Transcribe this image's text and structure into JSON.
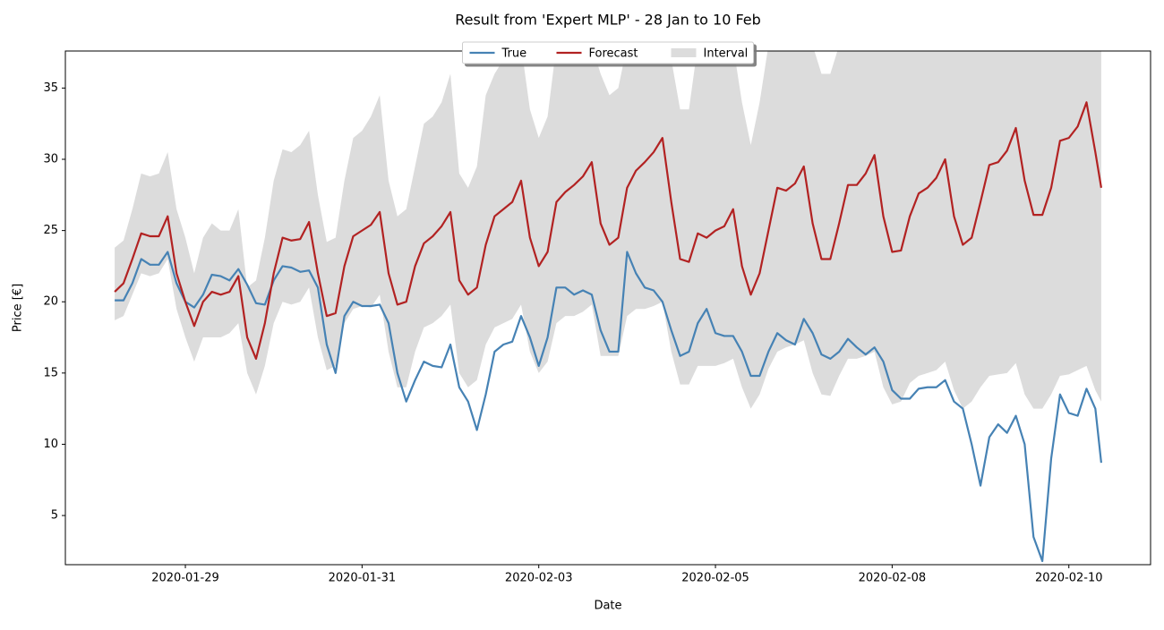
{
  "chart_data": {
    "type": "line",
    "title": "Result from 'Expert MLP' - 28 Jan to 10 Feb",
    "x_label": "Date",
    "y_label": "Price [€]",
    "legend": "upper center",
    "xlim": [
      "2020-01-27T07:15",
      "2020-02-11T15:45"
    ],
    "xticks": [
      {
        "value": "2020-01-29T00:00",
        "label": "2020-01-29"
      },
      {
        "value": "2020-01-31T12:00",
        "label": "2020-01-31"
      },
      {
        "value": "2020-02-03T00:00",
        "label": "2020-02-03"
      },
      {
        "value": "2020-02-05T12:00",
        "label": "2020-02-05"
      },
      {
        "value": "2020-02-08T00:00",
        "label": "2020-02-08"
      },
      {
        "value": "2020-02-10T12:00",
        "label": "2020-02-10"
      }
    ],
    "ylim": [
      1.55,
      37.6
    ],
    "yticks": [
      5,
      10,
      15,
      20,
      25,
      30,
      35
    ],
    "x": [
      "2020-01-28T00:00",
      "2020-01-28T03:00",
      "2020-01-28T06:00",
      "2020-01-28T09:00",
      "2020-01-28T12:00",
      "2020-01-28T15:00",
      "2020-01-28T18:00",
      "2020-01-28T21:00",
      "2020-01-29T00:00",
      "2020-01-29T03:00",
      "2020-01-29T06:00",
      "2020-01-29T09:00",
      "2020-01-29T12:00",
      "2020-01-29T15:00",
      "2020-01-29T18:00",
      "2020-01-29T21:00",
      "2020-01-30T00:00",
      "2020-01-30T03:00",
      "2020-01-30T06:00",
      "2020-01-30T09:00",
      "2020-01-30T12:00",
      "2020-01-30T15:00",
      "2020-01-30T18:00",
      "2020-01-30T21:00",
      "2020-01-31T00:00",
      "2020-01-31T03:00",
      "2020-01-31T06:00",
      "2020-01-31T09:00",
      "2020-01-31T12:00",
      "2020-01-31T15:00",
      "2020-01-31T18:00",
      "2020-01-31T21:00",
      "2020-02-01T00:00",
      "2020-02-01T03:00",
      "2020-02-01T06:00",
      "2020-02-01T09:00",
      "2020-02-01T12:00",
      "2020-02-01T15:00",
      "2020-02-01T18:00",
      "2020-02-01T21:00",
      "2020-02-02T00:00",
      "2020-02-02T03:00",
      "2020-02-02T06:00",
      "2020-02-02T09:00",
      "2020-02-02T12:00",
      "2020-02-02T15:00",
      "2020-02-02T18:00",
      "2020-02-02T21:00",
      "2020-02-03T00:00",
      "2020-02-03T03:00",
      "2020-02-03T06:00",
      "2020-02-03T09:00",
      "2020-02-03T12:00",
      "2020-02-03T15:00",
      "2020-02-03T18:00",
      "2020-02-03T21:00",
      "2020-02-04T00:00",
      "2020-02-04T03:00",
      "2020-02-04T06:00",
      "2020-02-04T09:00",
      "2020-02-04T12:00",
      "2020-02-04T15:00",
      "2020-02-04T18:00",
      "2020-02-04T21:00",
      "2020-02-05T00:00",
      "2020-02-05T03:00",
      "2020-02-05T06:00",
      "2020-02-05T09:00",
      "2020-02-05T12:00",
      "2020-02-05T15:00",
      "2020-02-05T18:00",
      "2020-02-05T21:00",
      "2020-02-06T00:00",
      "2020-02-06T03:00",
      "2020-02-06T06:00",
      "2020-02-06T09:00",
      "2020-02-06T12:00",
      "2020-02-06T15:00",
      "2020-02-06T18:00",
      "2020-02-06T21:00",
      "2020-02-07T00:00",
      "2020-02-07T03:00",
      "2020-02-07T06:00",
      "2020-02-07T09:00",
      "2020-02-07T12:00",
      "2020-02-07T15:00",
      "2020-02-07T18:00",
      "2020-02-07T21:00",
      "2020-02-08T00:00",
      "2020-02-08T03:00",
      "2020-02-08T06:00",
      "2020-02-08T09:00",
      "2020-02-08T12:00",
      "2020-02-08T15:00",
      "2020-02-08T18:00",
      "2020-02-08T21:00",
      "2020-02-09T00:00",
      "2020-02-09T03:00",
      "2020-02-09T06:00",
      "2020-02-09T09:00",
      "2020-02-09T12:00",
      "2020-02-09T15:00",
      "2020-02-09T18:00",
      "2020-02-09T21:00",
      "2020-02-10T00:00",
      "2020-02-10T03:00",
      "2020-02-10T06:00",
      "2020-02-10T09:00",
      "2020-02-10T12:00",
      "2020-02-10T15:00",
      "2020-02-10T18:00",
      "2020-02-10T21:00",
      "2020-02-10T23:00"
    ],
    "interval": {
      "name": "Interval",
      "color": "#dcdcdc",
      "lower": [
        18.7,
        19.0,
        20.5,
        22.0,
        21.8,
        22.0,
        23.0,
        19.5,
        17.5,
        15.8,
        17.5,
        17.5,
        17.5,
        17.8,
        18.5,
        15.0,
        13.5,
        15.5,
        18.5,
        20.0,
        19.8,
        20.0,
        21.0,
        17.5,
        15.2,
        15.5,
        18.5,
        19.5,
        19.7,
        19.6,
        20.5,
        16.5,
        14.0,
        14.0,
        16.5,
        18.2,
        18.5,
        19.0,
        19.8,
        15.0,
        14.0,
        14.5,
        17.0,
        18.2,
        18.5,
        18.8,
        19.8,
        16.5,
        15.0,
        15.8,
        18.5,
        19.0,
        19.0,
        19.3,
        19.8,
        16.2,
        16.2,
        16.2,
        19.0,
        19.5,
        19.5,
        19.7,
        20.0,
        16.5,
        14.2,
        14.2,
        15.5,
        15.5,
        15.5,
        15.7,
        16.0,
        14.0,
        12.5,
        13.5,
        15.3,
        16.5,
        16.8,
        17.0,
        17.3,
        15.0,
        13.5,
        13.4,
        14.8,
        16.0,
        16.0,
        16.2,
        16.5,
        14.0,
        12.8,
        13.0,
        14.3,
        14.8,
        15.0,
        15.2,
        15.8,
        13.8,
        12.5,
        13.0,
        14.0,
        14.8,
        14.9,
        15.0,
        15.7,
        13.5,
        12.5,
        12.5,
        13.5,
        14.8,
        14.9,
        15.2,
        15.5,
        13.8,
        13.0
      ],
      "upper": [
        23.8,
        24.3,
        26.5,
        29.0,
        28.8,
        29.0,
        30.5,
        26.5,
        24.5,
        22.0,
        24.5,
        25.5,
        25.0,
        25.0,
        26.5,
        21.0,
        21.5,
        24.5,
        28.5,
        30.7,
        30.5,
        31.0,
        32.0,
        27.5,
        24.2,
        24.5,
        28.5,
        31.5,
        32.0,
        33.0,
        34.5,
        28.5,
        26.0,
        26.5,
        29.5,
        32.5,
        33.0,
        34.0,
        36.0,
        29.0,
        28.0,
        29.5,
        34.5,
        36.0,
        37.0,
        38,
        38,
        33.5,
        31.5,
        33,
        38,
        38,
        38,
        38,
        38,
        36,
        34.5,
        35,
        38,
        38,
        38,
        38,
        38,
        37,
        33.5,
        33.5,
        38,
        38,
        38,
        38,
        38,
        34,
        31,
        34,
        38,
        38,
        38,
        38,
        38,
        38,
        36,
        36,
        38,
        38,
        38,
        38,
        38,
        38,
        38,
        38,
        38,
        38,
        38,
        38,
        38,
        38,
        38,
        38,
        38,
        38,
        38,
        38,
        38,
        38,
        38,
        38,
        38,
        38,
        38,
        38,
        38,
        38,
        38
      ]
    },
    "series": [
      {
        "name": "True",
        "color": "#4682b4",
        "values": [
          20.1,
          20.1,
          21.3,
          23.0,
          22.6,
          22.6,
          23.5,
          21.3,
          20.0,
          19.6,
          20.5,
          21.9,
          21.8,
          21.5,
          22.3,
          21.2,
          19.9,
          19.8,
          21.5,
          22.5,
          22.4,
          22.1,
          22.2,
          21.0,
          17.0,
          15.0,
          19.0,
          20.0,
          19.7,
          19.7,
          19.8,
          18.5,
          15.0,
          13.0,
          14.5,
          15.8,
          15.5,
          15.4,
          17.0,
          14.0,
          13.0,
          11.0,
          13.5,
          16.5,
          17.0,
          17.2,
          19.0,
          17.5,
          15.5,
          17.5,
          21.0,
          21.0,
          20.5,
          20.8,
          20.5,
          18.0,
          16.5,
          16.5,
          23.5,
          22.0,
          21.0,
          20.8,
          20.0,
          18.0,
          16.2,
          16.5,
          18.5,
          19.5,
          17.8,
          17.6,
          17.6,
          16.5,
          14.8,
          14.8,
          16.5,
          17.8,
          17.3,
          17.0,
          18.8,
          17.8,
          16.3,
          16.0,
          16.5,
          17.4,
          16.8,
          16.3,
          16.8,
          15.8,
          13.8,
          13.2,
          13.2,
          13.9,
          14.0,
          14.0,
          14.5,
          13.0,
          12.5,
          10.0,
          7.1,
          10.5,
          11.4,
          10.8,
          12.0,
          10.0,
          3.5,
          1.8,
          9.0,
          13.5,
          12.2,
          12.0,
          13.9,
          12.5,
          8.7
        ]
      },
      {
        "name": "Forecast",
        "color": "#b22222",
        "values": [
          20.7,
          21.3,
          23.0,
          24.8,
          24.6,
          24.6,
          26.0,
          22.0,
          20.0,
          18.3,
          20.0,
          20.7,
          20.5,
          20.7,
          21.8,
          17.5,
          16.0,
          18.5,
          22.0,
          24.5,
          24.3,
          24.4,
          25.6,
          22.0,
          19.0,
          19.2,
          22.5,
          24.6,
          25.0,
          25.4,
          26.3,
          22.0,
          19.8,
          20.0,
          22.5,
          24.1,
          24.6,
          25.3,
          26.3,
          21.5,
          20.5,
          21.0,
          24.0,
          26.0,
          26.5,
          27.0,
          28.5,
          24.5,
          22.5,
          23.5,
          27.0,
          27.7,
          28.2,
          28.8,
          29.8,
          25.5,
          24.0,
          24.5,
          28.0,
          29.2,
          29.8,
          30.5,
          31.5,
          27.0,
          23.0,
          22.8,
          24.8,
          24.5,
          25.0,
          25.3,
          26.5,
          22.5,
          20.5,
          22.0,
          25.0,
          28.0,
          27.8,
          28.3,
          29.5,
          25.5,
          23.0,
          23.0,
          25.5,
          28.2,
          28.2,
          29.0,
          30.3,
          26.0,
          23.5,
          23.6,
          26.0,
          27.6,
          28.0,
          28.7,
          30.0,
          26.0,
          24.0,
          24.5,
          27.0,
          29.6,
          29.8,
          30.6,
          32.2,
          28.5,
          26.1,
          26.1,
          28.0,
          31.3,
          31.5,
          32.3,
          34.0,
          30.5,
          28.0
        ]
      }
    ]
  }
}
